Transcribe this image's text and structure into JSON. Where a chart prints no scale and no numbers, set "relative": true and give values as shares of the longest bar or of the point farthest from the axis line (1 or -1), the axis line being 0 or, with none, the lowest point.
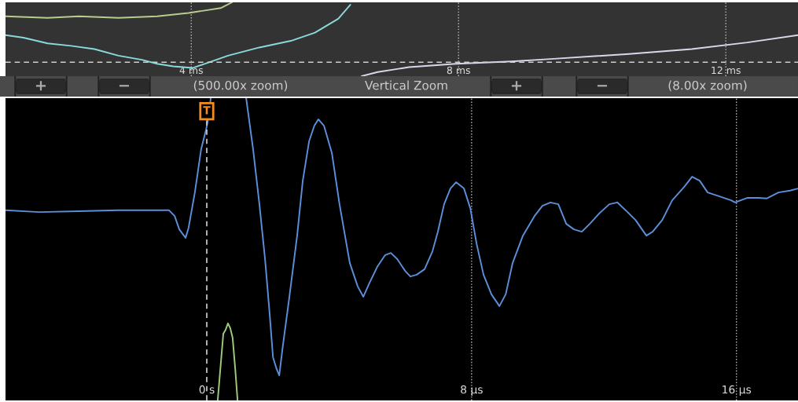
{
  "chart_data": [
    {
      "type": "line",
      "relative": true,
      "xlim": [
        1.22,
        13.08
      ],
      "xticks": [
        {
          "value": 4,
          "label": "4 ms"
        },
        {
          "value": 8,
          "label": "8 ms"
        },
        {
          "value": 12,
          "label": "12 ms"
        }
      ],
      "grid": "x",
      "tick_labels": "x",
      "series": [
        {
          "color": "#b8cc8e",
          "x": [
            1.22,
            1.85,
            2.32,
            2.91,
            3.49,
            3.96,
            4.44,
            4.61
          ],
          "values": [
            0.811,
            0.789,
            0.811,
            0.789,
            0.811,
            0.856,
            0.922,
            1.0
          ]
        },
        {
          "color": "#8adada",
          "x": [
            1.22,
            1.49,
            1.85,
            2.2,
            2.55,
            2.91,
            3.26,
            3.49,
            3.73,
            4.02,
            4.2,
            4.55,
            5.02,
            5.49,
            5.85,
            6.2,
            6.38
          ],
          "values": [
            0.556,
            0.522,
            0.444,
            0.411,
            0.367,
            0.278,
            0.222,
            0.167,
            0.133,
            0.111,
            0.167,
            0.278,
            0.389,
            0.478,
            0.589,
            0.778,
            0.967
          ]
        },
        {
          "color": "#ddd6ea",
          "x": [
            6.55,
            6.79,
            7.26,
            7.96,
            8.79,
            9.38,
            10.55,
            11.49,
            12.32,
            13.08
          ],
          "values": [
            0,
            0.056,
            0.122,
            0.167,
            0.2,
            0.233,
            0.3,
            0.367,
            0.456,
            0.556
          ]
        }
      ],
      "ref_lines": [
        {
          "axis": "y",
          "value": 0.189,
          "line_style": "dashed"
        }
      ],
      "annotations": [
        "+",
        "−",
        "(500.00x zoom)",
        "Vertical Zoom",
        "+",
        "−",
        "(8.00x zoom)"
      ]
    },
    {
      "type": "line",
      "relative": true,
      "xlim": [
        -6.08,
        17.86
      ],
      "xticks": [
        {
          "value": 0,
          "label": "0 s"
        },
        {
          "value": 8,
          "label": "8 µs"
        },
        {
          "value": 16,
          "label": "16 µs"
        }
      ],
      "grid": "x",
      "tick_labels": "x",
      "series": [
        {
          "color": "#5b8fd9",
          "x": [
            -6.08,
            -5.06,
            -3.87,
            -2.68,
            -1.14,
            -0.97,
            -0.83,
            -0.64,
            -0.55,
            -0.36,
            -0.17,
            -0.02,
            0.05,
            0.12,
            0.65,
            1.19,
            1.4,
            1.59,
            1.76,
            1.9,
            2.0,
            2.11,
            2.19,
            2.3,
            2.49,
            2.73,
            2.9,
            3.09,
            3.25,
            3.37,
            3.54,
            3.78,
            4.01,
            4.32,
            4.56,
            4.73,
            4.92,
            5.15,
            5.39,
            5.56,
            5.75,
            5.99,
            6.15,
            6.34,
            6.58,
            6.82,
            6.98,
            7.17,
            7.36,
            7.53,
            7.77,
            7.96,
            8.15,
            8.36,
            8.6,
            8.84,
            9.03,
            9.24,
            9.55,
            9.9,
            10.14,
            10.38,
            10.62,
            10.86,
            11.09,
            11.33,
            11.57,
            11.85,
            12.16,
            12.4,
            12.71,
            12.95,
            13.28,
            13.47,
            13.76,
            14.06,
            14.42,
            14.66,
            14.89,
            15.13,
            15.49,
            15.84,
            15.96,
            16.32,
            16.67,
            16.91,
            17.27,
            17.62,
            17.86
          ],
          "values": [
            0.629,
            0.623,
            0.626,
            0.629,
            0.629,
            0.61,
            0.566,
            0.538,
            0.571,
            0.688,
            0.831,
            0.896,
            0.935,
            1.0,
            null,
            1.0,
            0.831,
            0.649,
            0.468,
            0.286,
            0.143,
            0.104,
            0.083,
            0.182,
            0.338,
            0.545,
            0.727,
            0.857,
            0.909,
            0.93,
            0.909,
            0.818,
            0.649,
            0.455,
            0.377,
            0.343,
            0.39,
            0.442,
            0.481,
            0.488,
            0.468,
            0.429,
            0.41,
            0.416,
            0.434,
            0.494,
            0.558,
            0.649,
            0.701,
            0.722,
            0.701,
            0.636,
            0.519,
            0.416,
            0.351,
            0.312,
            0.351,
            0.455,
            0.545,
            0.61,
            0.644,
            0.655,
            0.649,
            0.584,
            0.566,
            0.558,
            0.584,
            0.618,
            0.649,
            0.655,
            0.623,
            0.597,
            0.545,
            0.558,
            0.597,
            0.662,
            0.706,
            0.74,
            0.727,
            0.688,
            0.675,
            0.662,
            0.655,
            0.67,
            0.67,
            0.668,
            0.688,
            0.694,
            0.701
          ]
        },
        {
          "color": "#9ccc7a",
          "x": [
            0.33,
            0.43,
            0.5,
            0.57,
            0.64,
            0.71,
            0.78,
            0.86,
            0.93
          ],
          "values": [
            0,
            0.13,
            0.221,
            0.234,
            0.255,
            0.239,
            0.208,
            0.104,
            0
          ]
        }
      ],
      "ref_lines": [
        {
          "axis": "x",
          "value": 0,
          "label": "T",
          "line_style": "dashed"
        }
      ]
    }
  ]
}
